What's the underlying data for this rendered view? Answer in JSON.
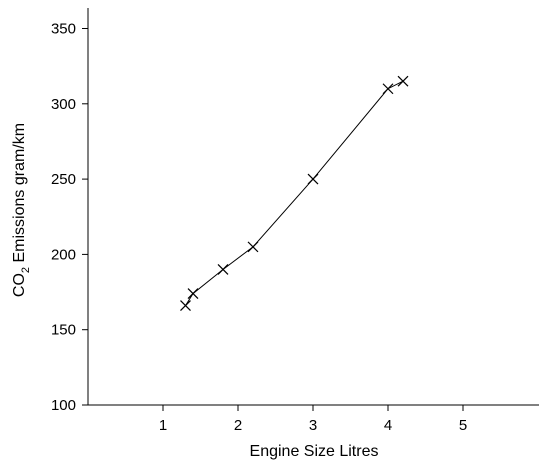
{
  "chart_data": {
    "type": "line",
    "title": "",
    "xlabel": "Engine Size Litres",
    "ylabel_main": "CO",
    "ylabel_sub": "2",
    "ylabel_rest": " Emissions gram/km",
    "xlim": [
      0,
      6
    ],
    "ylim": [
      100,
      360
    ],
    "x_ticks": [
      1,
      2,
      3,
      4,
      5
    ],
    "y_ticks": [
      100,
      150,
      200,
      250,
      300,
      350
    ],
    "grid": false,
    "marker": "x",
    "series": [
      {
        "x": [
          1.3,
          1.4,
          1.8,
          2.2,
          3.0,
          4.0,
          4.2
        ],
        "y": [
          166,
          174,
          190,
          205,
          250,
          310,
          315
        ]
      }
    ]
  }
}
